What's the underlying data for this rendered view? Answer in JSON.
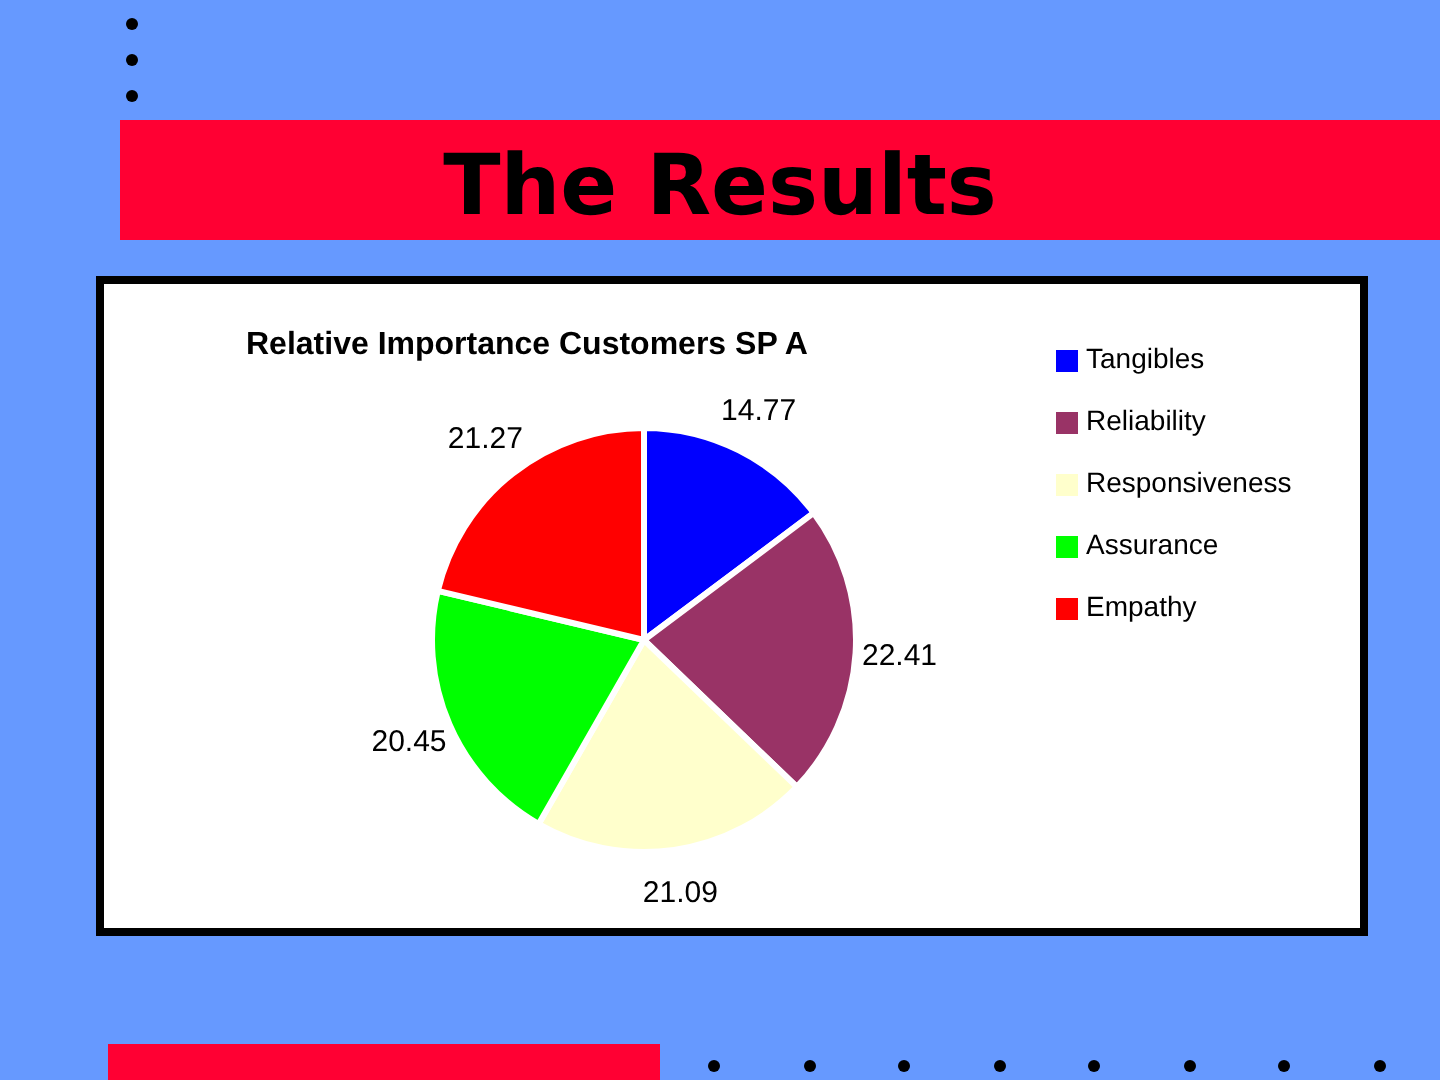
{
  "chart_data": {
    "type": "pie",
    "title": "The Results",
    "subtitle": "Relative Importance Customers SP A",
    "categories": [
      "Tangibles",
      "Reliability",
      "Responsiveness",
      "Assurance",
      "Empathy"
    ],
    "values": [
      14.77,
      22.41,
      21.09,
      20.45,
      21.27
    ],
    "colors": [
      "#0000ff",
      "#993366",
      "#ffffcc",
      "#00ff00",
      "#ff0000"
    ],
    "data_labels": true,
    "legend": "top right"
  }
}
